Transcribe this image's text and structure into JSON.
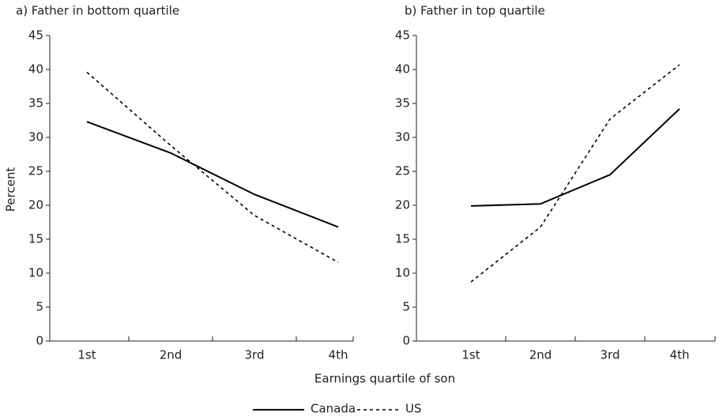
{
  "xlabel": "Earnings quartile of son",
  "chart_data": [
    {
      "type": "line",
      "title": "a) Father in bottom quartile",
      "ylabel": "Percent",
      "categories": [
        "1st",
        "2nd",
        "3rd",
        "4th"
      ],
      "series": [
        {
          "name": "Canada",
          "color": "#000000",
          "style": "solid",
          "values": [
            32.3,
            27.7,
            21.6,
            16.8
          ]
        },
        {
          "name": "US",
          "color": "#000000",
          "style": "dotted",
          "values": [
            39.6,
            28.8,
            18.5,
            11.6
          ]
        }
      ],
      "ylim": [
        0,
        45
      ],
      "yticks": [
        0,
        5,
        10,
        15,
        20,
        25,
        30,
        35,
        40,
        45
      ]
    },
    {
      "type": "line",
      "title": "b) Father in top quartile",
      "categories": [
        "1st",
        "2nd",
        "3rd",
        "4th"
      ],
      "series": [
        {
          "name": "Canada",
          "color": "#000000",
          "style": "solid",
          "values": [
            19.9,
            20.2,
            24.5,
            34.2
          ]
        },
        {
          "name": "US",
          "color": "#000000",
          "style": "dotted",
          "values": [
            8.7,
            16.8,
            32.7,
            40.7
          ]
        }
      ],
      "ylim": [
        0,
        45
      ],
      "yticks": [
        0,
        5,
        10,
        15,
        20,
        25,
        30,
        35,
        40,
        45
      ]
    }
  ]
}
